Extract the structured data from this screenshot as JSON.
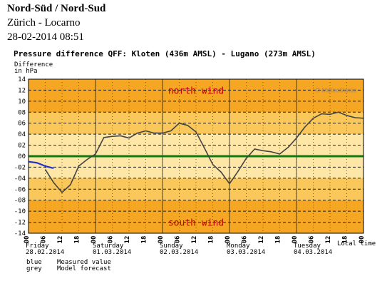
{
  "header": {
    "title": "Nord-Süd / Nord-Sud",
    "route": "Zürich - Locarno",
    "date": "28-02-2014 08:51"
  },
  "chart_data": {
    "type": "line",
    "title": "Pressure difference QFF: Kloten (436m AMSL) - Lugano (273m AMSL)",
    "ylabel_line1": "Difference",
    "ylabel_line2": "in hPa",
    "y_ticks": [
      "14",
      "12",
      "10",
      "08",
      "06",
      "04",
      "02",
      "00",
      "-02",
      "-04",
      "-06",
      "-08",
      "-10",
      "-12",
      "-14"
    ],
    "ylim": [
      -14,
      14
    ],
    "x_hour_labels": [
      "00",
      "06",
      "12",
      "18",
      "00",
      "06",
      "12",
      "18",
      "00",
      "06",
      "12",
      "18",
      "00",
      "06",
      "12",
      "18",
      "00",
      "06",
      "12",
      "18",
      "00"
    ],
    "days": [
      {
        "name": "Friday",
        "date": "28.02.2014"
      },
      {
        "name": "Saturday",
        "date": "01.03.2014"
      },
      {
        "name": "Sunday",
        "date": "02.03.2014"
      },
      {
        "name": "Monday",
        "date": "03.03.2014"
      },
      {
        "name": "Tuesday",
        "date": "04.03.2014"
      }
    ],
    "x_unit_label": "Local time",
    "north_label": "north wind",
    "south_label": "south wind",
    "copyright": "© MeteoSwiss",
    "reference_line_value": 0,
    "colors": {
      "band_outer": "#f5a623",
      "band_mid": "#f9c75a",
      "band_inner": "#fde6a6",
      "zero_line": "#107a10",
      "measured": "#2233cc",
      "forecast": "#444444"
    },
    "series": [
      {
        "name": "Measured value",
        "x_hours": [
          0,
          3,
          6,
          9
        ],
        "values": [
          -1.0,
          -1.2,
          -1.8,
          -2.2
        ]
      },
      {
        "name": "Model forecast",
        "x_hours": [
          6,
          9,
          12,
          15,
          18,
          21,
          24,
          27,
          30,
          33,
          36,
          39,
          42,
          45,
          48,
          51,
          54,
          57,
          60,
          63,
          66,
          69,
          72,
          75,
          78,
          81,
          84,
          87,
          90,
          93,
          96,
          99,
          102,
          105,
          108,
          111,
          114,
          117,
          120
        ],
        "values": [
          -2.4,
          -4.8,
          -6.6,
          -5.2,
          -1.8,
          -0.6,
          0.4,
          3.4,
          3.6,
          3.7,
          3.3,
          4.2,
          4.6,
          4.2,
          4.2,
          4.6,
          6.0,
          5.6,
          4.4,
          1.5,
          -1.5,
          -2.9,
          -5.0,
          -2.8,
          -0.4,
          1.3,
          1.0,
          0.8,
          0.4,
          1.6,
          3.3,
          5.3,
          6.9,
          7.7,
          7.6,
          8.0,
          7.4,
          7.0,
          6.9
        ]
      }
    ],
    "legend": [
      {
        "key": "blue",
        "label": "Measured value"
      },
      {
        "key": "grey",
        "label": "Model forecast"
      }
    ]
  }
}
